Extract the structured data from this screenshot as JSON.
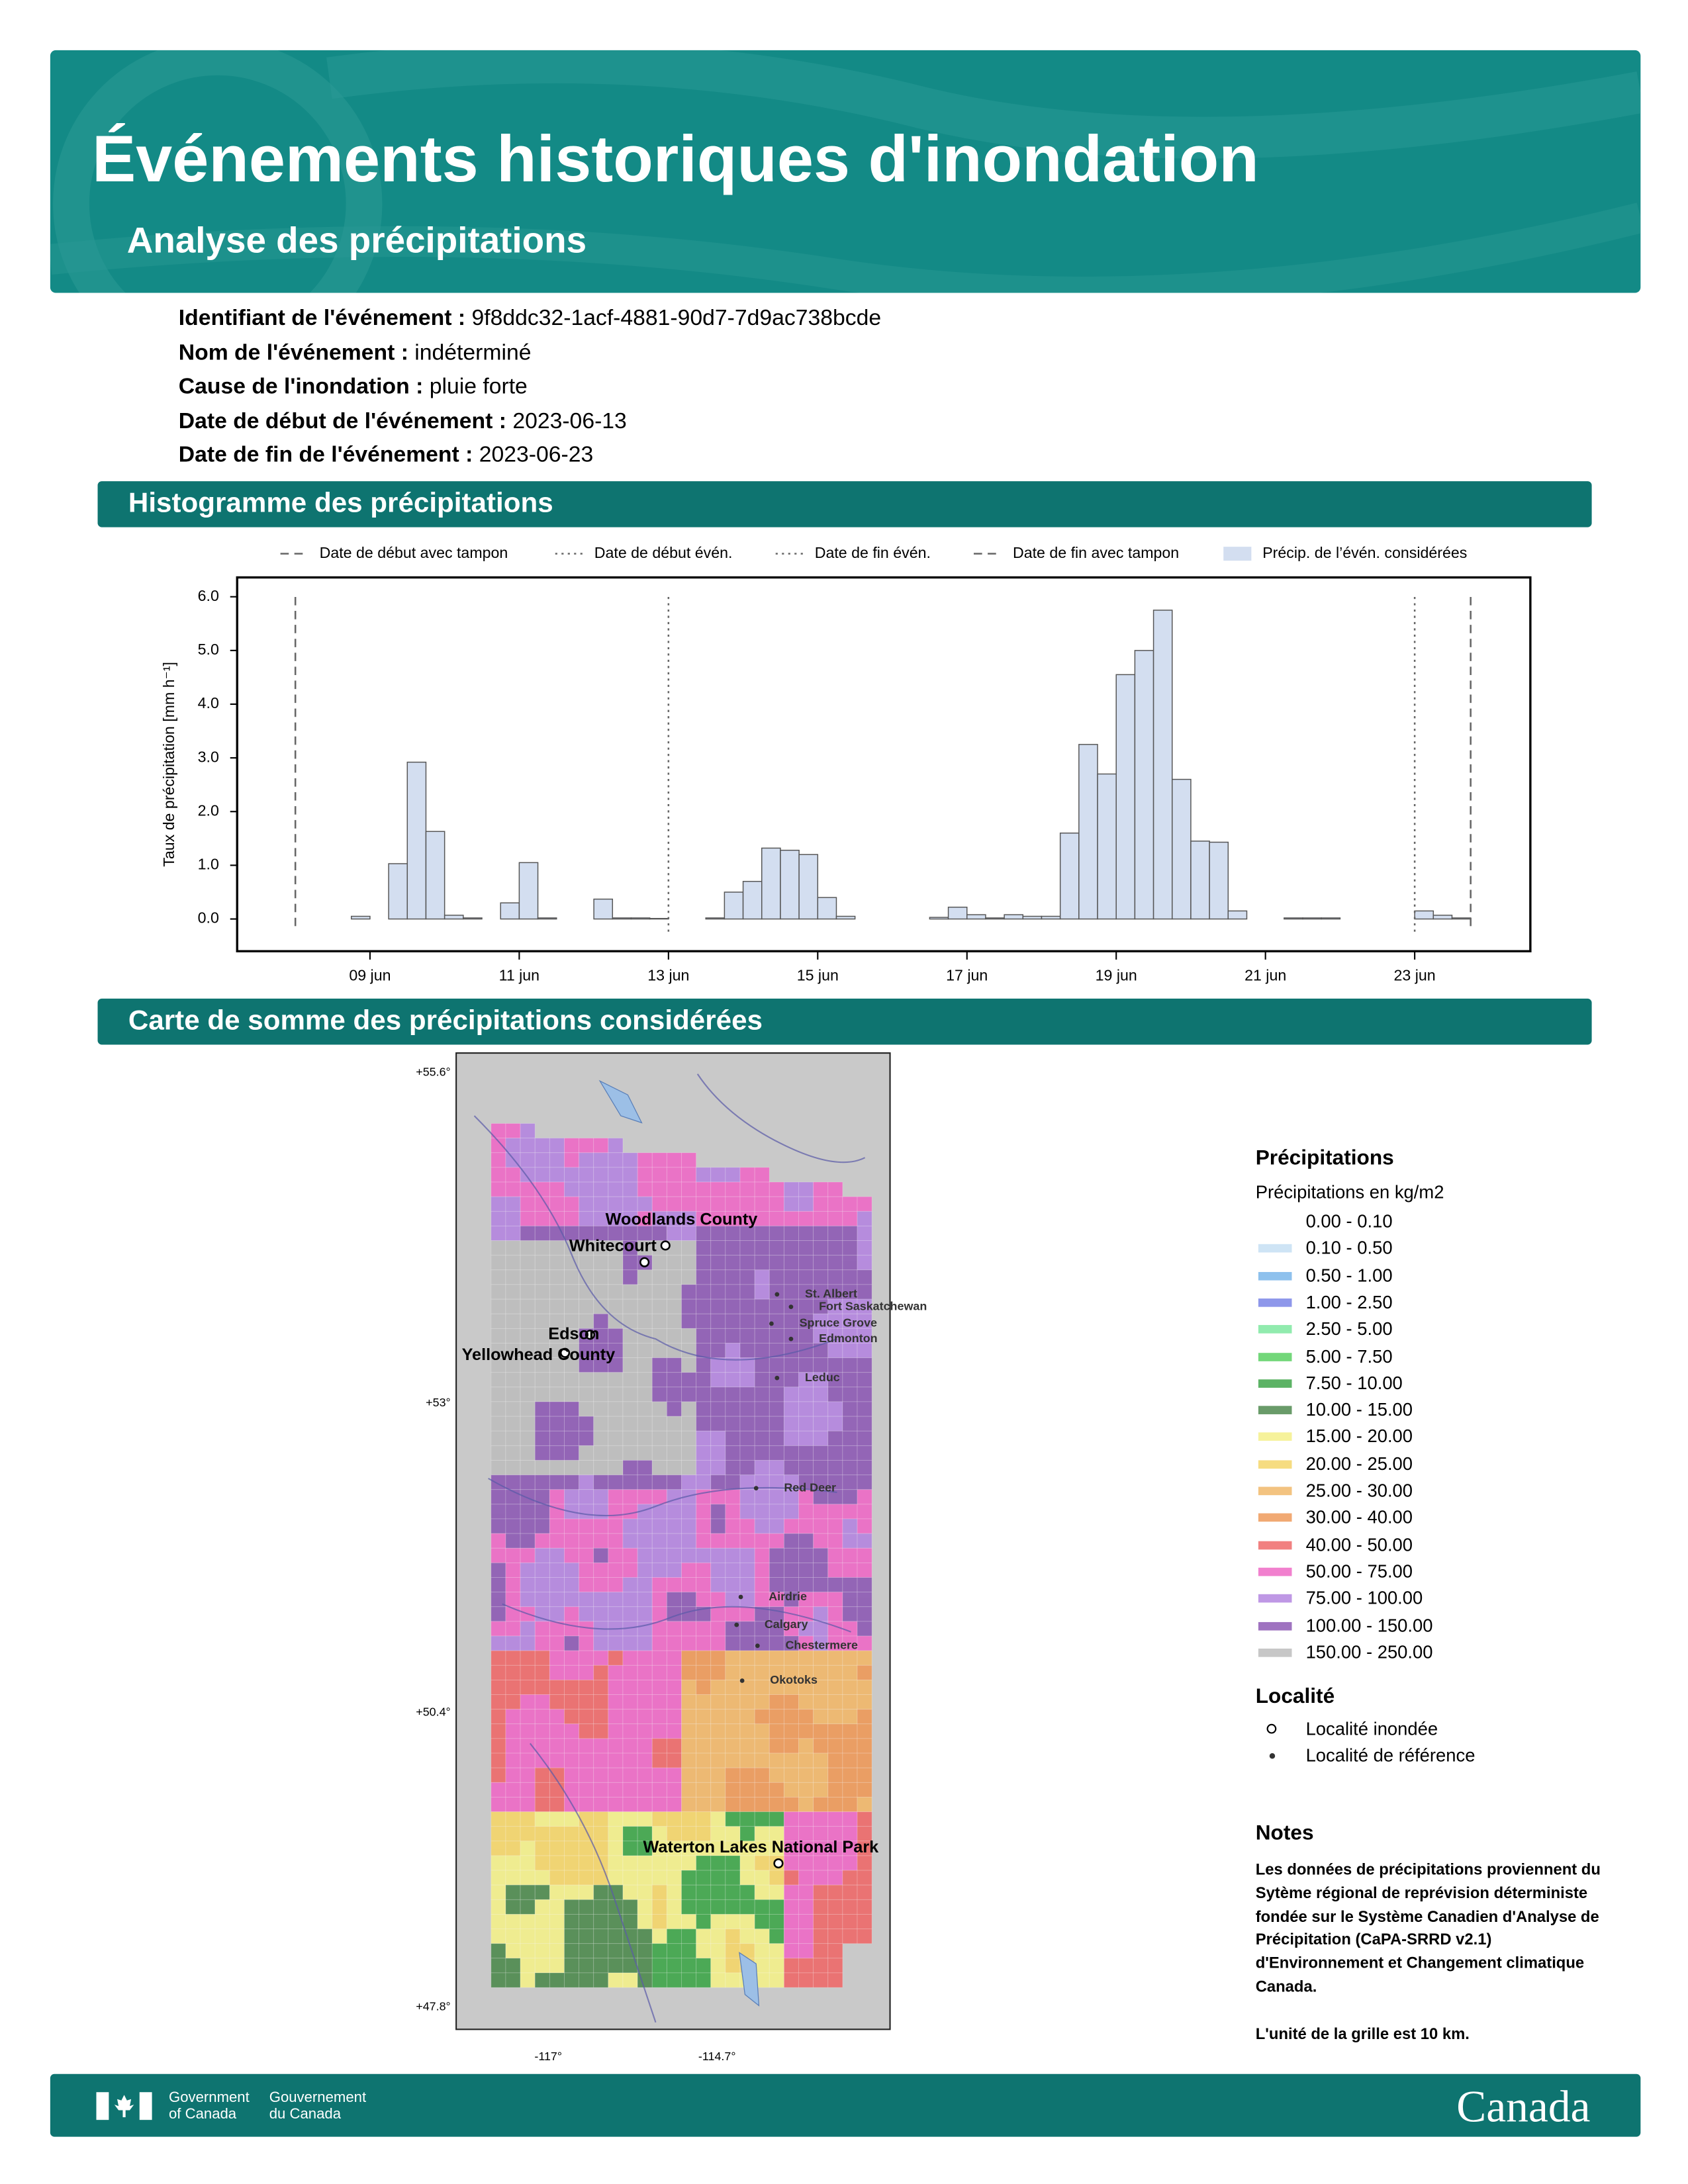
{
  "header": {
    "title": "Événements historiques d'inondation",
    "subtitle": "Analyse des précipitations"
  },
  "event_info": [
    {
      "label": "Identifiant de l'événement :",
      "value": "9f8ddc32-1acf-4881-90d7-7d9ac738bcde"
    },
    {
      "label": "Nom de l'événement :",
      "value": "indéterminé"
    },
    {
      "label": "Cause de l'inondation :",
      "value": "pluie forte"
    },
    {
      "label": "Date de début de l'événement :",
      "value": "2023-06-13"
    },
    {
      "label": "Date de fin de l'événement :",
      "value": "2023-06-23"
    }
  ],
  "sections": {
    "histogram": "Histogramme des précipitations",
    "map": "Carte de somme des précipitations considérées"
  },
  "chart_data": {
    "type": "histogram",
    "y_label": "Taux de précipitation [mm h⁻¹]",
    "bins": [
      8,
      8.25,
      8.5,
      8.75,
      9,
      9.25,
      9.5,
      9.75,
      10,
      10.25,
      10.5,
      10.75,
      11,
      11.25,
      11.5,
      11.75,
      12,
      12.25,
      12.5,
      12.75,
      13,
      13.25,
      13.5,
      13.75,
      14,
      14.25,
      14.5,
      14.75,
      15,
      15.25,
      15.5,
      15.75,
      16,
      16.25,
      16.5,
      16.75,
      17,
      17.25,
      17.5,
      17.75,
      18,
      18.25,
      18.5,
      18.75,
      19,
      19.25,
      19.5,
      19.75,
      20,
      20.25,
      20.5,
      20.75,
      21,
      21.25,
      21.5,
      21.75,
      22,
      22.25,
      22.5,
      22.75,
      23,
      23.25,
      23.5,
      23.75
    ],
    "series": [
      {
        "name": "Précip. de l’évén. considérées",
        "color": "#d3def0",
        "values": [
          0,
          0,
          0,
          0.05,
          0,
          1.03,
          2.92,
          1.63,
          0.07,
          0.02,
          0,
          0.3,
          1.05,
          0.02,
          0,
          0,
          0.37,
          0.02,
          0.02,
          0.01,
          0,
          0,
          0.02,
          0.5,
          0.7,
          1.32,
          1.28,
          1.2,
          0.4,
          0.05,
          0,
          0,
          0,
          0,
          0.03,
          0.22,
          0.08,
          0.02,
          0.08,
          0.05,
          0.05,
          1.6,
          3.25,
          2.7,
          4.55,
          5.0,
          5.75,
          2.6,
          1.45,
          1.43,
          0.15,
          0,
          0,
          0.02,
          0.02,
          0.02,
          0,
          0,
          0,
          0,
          0.15,
          0.07,
          0.02
        ]
      }
    ],
    "markers": [
      {
        "name": "Date de début avec tampon",
        "x": 8,
        "style": "dashed"
      },
      {
        "name": "Date de début évén.",
        "x": 13,
        "style": "dotted"
      },
      {
        "name": "Date de fin évén.",
        "x": 23,
        "style": "dotted"
      },
      {
        "name": "Date de fin avec tampon",
        "x": 23.75,
        "style": "dashed"
      }
    ],
    "xlim": [
      7.22,
      24.55
    ],
    "ylim": [
      -0.6,
      6.36
    ],
    "xticks": [
      {
        "value": 9,
        "label": "09 jun"
      },
      {
        "value": 11,
        "label": "11 jun"
      },
      {
        "value": 13,
        "label": "13 jun"
      },
      {
        "value": 15,
        "label": "15 jun"
      },
      {
        "value": 17,
        "label": "17 jun"
      },
      {
        "value": 19,
        "label": "19 jun"
      },
      {
        "value": 21,
        "label": "21 jun"
      },
      {
        "value": 23,
        "label": "23 jun"
      }
    ],
    "yticks": [
      {
        "value": 0,
        "label": "0.0"
      },
      {
        "value": 1,
        "label": "1.0"
      },
      {
        "value": 2,
        "label": "2.0"
      },
      {
        "value": 3,
        "label": "3.0"
      },
      {
        "value": 4,
        "label": "4.0"
      },
      {
        "value": 5,
        "label": "5.0"
      },
      {
        "value": 6,
        "label": "6.0"
      }
    ]
  },
  "map": {
    "lat_labels": [
      "+55.6°",
      "+53°",
      "+50.4°",
      "+47.8°"
    ],
    "lon_labels": [
      "-117°",
      "-114.7°"
    ],
    "localities": [
      {
        "name": "Woodlands County",
        "flooded": true
      },
      {
        "name": "Whitecourt",
        "flooded": true
      },
      {
        "name": "Edson",
        "flooded": true
      },
      {
        "name": "Yellowhead County",
        "flooded": true
      },
      {
        "name": "Waterton Lakes National Park",
        "flooded": true
      },
      {
        "name": "St. Albert",
        "flooded": false
      },
      {
        "name": "Fort Saskatchewan",
        "flooded": false
      },
      {
        "name": "Spruce Grove",
        "flooded": false
      },
      {
        "name": "Edmonton",
        "flooded": false
      },
      {
        "name": "Leduc",
        "flooded": false
      },
      {
        "name": "Red Deer",
        "flooded": false
      },
      {
        "name": "Airdrie",
        "flooded": false
      },
      {
        "name": "Calgary",
        "flooded": false
      },
      {
        "name": "Chestermere",
        "flooded": false
      },
      {
        "name": "Okotoks",
        "flooded": false
      }
    ],
    "legend": {
      "title": "Précipitations",
      "subtitle": "Précipitations en kg/m2",
      "classes": [
        {
          "label": "0.00 - 0.10",
          "color": "#ffffff"
        },
        {
          "label": "0.10 - 0.50",
          "color": "#c6dff3"
        },
        {
          "label": "0.50 - 1.00",
          "color": "#7ab6ea"
        },
        {
          "label": "1.00 - 2.50",
          "color": "#7a85e6"
        },
        {
          "label": "2.50 - 5.00",
          "color": "#7ee7a0"
        },
        {
          "label": "5.00 - 7.50",
          "color": "#5bd063"
        },
        {
          "label": "7.50 - 10.00",
          "color": "#3fa64a"
        },
        {
          "label": "10.00 - 15.00",
          "color": "#4f8a4f"
        },
        {
          "label": "15.00 - 20.00",
          "color": "#f4f08a"
        },
        {
          "label": "20.00 - 25.00",
          "color": "#f5d66a"
        },
        {
          "label": "25.00 - 30.00",
          "color": "#f1b86a"
        },
        {
          "label": "30.00 - 40.00",
          "color": "#ee9a5a"
        },
        {
          "label": "40.00 - 50.00",
          "color": "#ee6a6a"
        },
        {
          "label": "50.00 - 75.00",
          "color": "#ee6ac6"
        },
        {
          "label": "75.00 - 100.00",
          "color": "#b486e0"
        },
        {
          "label": "100.00 - 150.00",
          "color": "#8e5bb5"
        },
        {
          "label": "150.00 - 250.00",
          "color": "#bdbdbd"
        }
      ],
      "locality_title": "Localité",
      "locality_items": [
        "Localité inondée",
        "Localité de référence"
      ]
    }
  },
  "notes": {
    "title": "Notes",
    "paragraphs": [
      "Les données de précipitations proviennent du Sytème régional de reprévision déterministe fondée sur le Système Canadien d'Analyse de Précipitation (CaPA-SRRD v2.1) d'Environnement et Changement climatique Canada.",
      "L'unité de la grille est 10 km."
    ]
  },
  "footer": {
    "government_en": [
      "Government",
      "of Canada"
    ],
    "government_fr": [
      "Gouvernement",
      "du Canada"
    ],
    "wordmark": "Canada"
  }
}
